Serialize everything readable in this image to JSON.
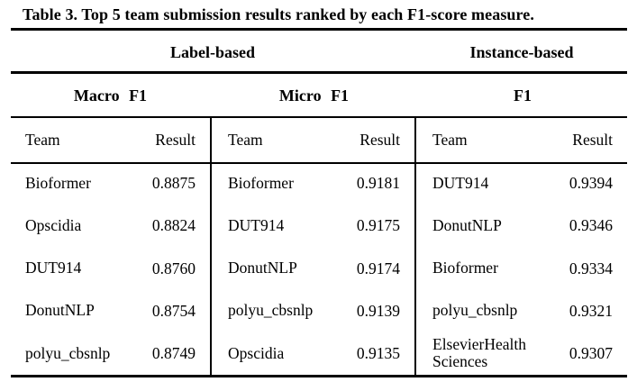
{
  "caption": "Table 3. Top 5 team submission results ranked by each F1-score measure.",
  "group_headers": [
    {
      "label": "Label-based"
    },
    {
      "label": "Instance-based"
    }
  ],
  "columns": {
    "team": "Team",
    "result": "Result"
  },
  "panels": [
    {
      "measure": "Macro F1",
      "rows": [
        {
          "team": "Bioformer",
          "result": "0.8875"
        },
        {
          "team": "Opscidia",
          "result": "0.8824"
        },
        {
          "team": "DUT914",
          "result": "0.8760"
        },
        {
          "team": "DonutNLP",
          "result": "0.8754"
        },
        {
          "team": "polyu_cbsnlp",
          "result": "0.8749"
        }
      ]
    },
    {
      "measure": "Micro F1",
      "rows": [
        {
          "team": "Bioformer",
          "result": "0.9181"
        },
        {
          "team": "DUT914",
          "result": "0.9175"
        },
        {
          "team": "DonutNLP",
          "result": "0.9174"
        },
        {
          "team": "polyu_cbsnlp",
          "result": "0.9139"
        },
        {
          "team": "Opscidia",
          "result": "0.9135"
        }
      ]
    },
    {
      "measure": "F1",
      "rows": [
        {
          "team": "DUT914",
          "result": "0.9394"
        },
        {
          "team": "DonutNLP",
          "result": "0.9346"
        },
        {
          "team": "Bioformer",
          "result": "0.9334"
        },
        {
          "team": "polyu_cbsnlp",
          "result": "0.9321"
        },
        {
          "team": "ElsevierHealth Sciences",
          "result": "0.9307"
        }
      ]
    }
  ],
  "colors": {
    "text": "#000000",
    "background": "#ffffff",
    "rule": "#000000"
  }
}
